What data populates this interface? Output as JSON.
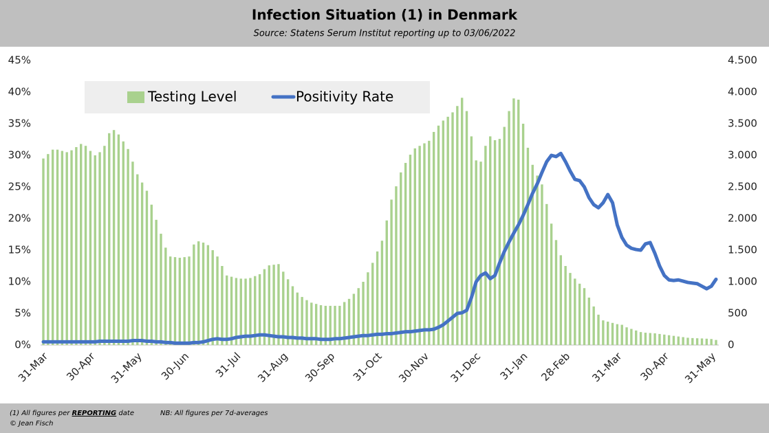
{
  "chart_data": {
    "type": "combo",
    "title": "Infection Situation (1) in Denmark",
    "subtitle": "Source: Statens Serum Institut reporting up to 03/06/2022",
    "categories": [
      "31-Mar",
      null,
      null,
      null,
      null,
      null,
      null,
      null,
      null,
      null,
      "30-Apr",
      null,
      null,
      null,
      null,
      null,
      null,
      null,
      null,
      null,
      "31-May",
      null,
      null,
      null,
      null,
      null,
      null,
      null,
      null,
      null,
      "30-Jun",
      null,
      null,
      null,
      null,
      null,
      null,
      null,
      null,
      null,
      null,
      "31-Jul",
      null,
      null,
      null,
      null,
      null,
      null,
      null,
      null,
      null,
      "31-Aug",
      null,
      null,
      null,
      null,
      null,
      null,
      null,
      null,
      null,
      "30-Sep",
      null,
      null,
      null,
      null,
      null,
      null,
      null,
      null,
      null,
      "31-Oct",
      null,
      null,
      null,
      null,
      null,
      null,
      null,
      null,
      null,
      "30-Nov",
      null,
      null,
      null,
      null,
      null,
      null,
      null,
      null,
      null,
      null,
      "31-Dec",
      null,
      null,
      null,
      null,
      null,
      null,
      null,
      null,
      null,
      "31-Jan",
      null,
      null,
      null,
      null,
      null,
      null,
      null,
      null,
      "28-Feb",
      null,
      null,
      null,
      null,
      null,
      null,
      null,
      null,
      null,
      null,
      "31-Mar",
      null,
      null,
      null,
      null,
      null,
      null,
      null,
      null,
      null,
      "30-Apr",
      null,
      null,
      null,
      null,
      null,
      null,
      null,
      null,
      null,
      "31-May",
      null
    ],
    "series": [
      {
        "name": "Testing Level",
        "type": "bar",
        "axis": "y2",
        "color": "#a9d18e",
        "values": [
          2950,
          3020,
          3090,
          3090,
          3070,
          3050,
          3080,
          3130,
          3180,
          3150,
          3070,
          3000,
          3050,
          3150,
          3350,
          3400,
          3330,
          3220,
          3100,
          2900,
          2700,
          2570,
          2440,
          2220,
          1980,
          1760,
          1540,
          1400,
          1390,
          1380,
          1390,
          1400,
          1590,
          1640,
          1620,
          1580,
          1500,
          1400,
          1250,
          1100,
          1080,
          1060,
          1050,
          1050,
          1060,
          1090,
          1120,
          1200,
          1260,
          1270,
          1280,
          1160,
          1040,
          930,
          830,
          760,
          710,
          670,
          650,
          630,
          620,
          620,
          620,
          620,
          680,
          730,
          810,
          900,
          1000,
          1150,
          1300,
          1480,
          1650,
          1970,
          2300,
          2510,
          2730,
          2880,
          3010,
          3110,
          3150,
          3190,
          3230,
          3370,
          3470,
          3550,
          3610,
          3680,
          3780,
          3910,
          3700,
          3300,
          2920,
          2900,
          3150,
          3300,
          3240,
          3260,
          3450,
          3700,
          3900,
          3880,
          3500,
          3120,
          2850,
          2680,
          2540,
          2230,
          1920,
          1660,
          1420,
          1250,
          1140,
          1050,
          970,
          900,
          750,
          610,
          480,
          390,
          370,
          350,
          330,
          320,
          280,
          255,
          230,
          205,
          195,
          190,
          185,
          175,
          165,
          155,
          145,
          135,
          125,
          115,
          110,
          107,
          104,
          100,
          95,
          80
        ]
      },
      {
        "name": "Positivity Rate",
        "type": "line",
        "color": "#4472c4",
        "values": [
          0.5,
          0.5,
          0.5,
          0.5,
          0.5,
          0.5,
          0.5,
          0.5,
          0.5,
          0.5,
          0.5,
          0.5,
          0.6,
          0.6,
          0.6,
          0.6,
          0.6,
          0.6,
          0.6,
          0.7,
          0.7,
          0.7,
          0.6,
          0.6,
          0.5,
          0.5,
          0.4,
          0.4,
          0.3,
          0.3,
          0.3,
          0.3,
          0.4,
          0.4,
          0.5,
          0.7,
          0.9,
          1.0,
          0.9,
          0.9,
          1.0,
          1.2,
          1.3,
          1.4,
          1.4,
          1.5,
          1.6,
          1.6,
          1.5,
          1.4,
          1.3,
          1.3,
          1.2,
          1.2,
          1.1,
          1.1,
          1.0,
          1.0,
          1.0,
          0.9,
          0.9,
          0.9,
          1.0,
          1.0,
          1.1,
          1.2,
          1.3,
          1.4,
          1.5,
          1.5,
          1.6,
          1.7,
          1.7,
          1.8,
          1.8,
          1.9,
          2.0,
          2.1,
          2.1,
          2.2,
          2.3,
          2.4,
          2.4,
          2.5,
          2.8,
          3.2,
          3.8,
          4.4,
          5.0,
          5.1,
          5.5,
          7.5,
          10.0,
          11.0,
          11.4,
          10.5,
          11.0,
          13.0,
          14.8,
          16.3,
          17.7,
          19.0,
          20.5,
          22.2,
          24.0,
          25.5,
          27.3,
          29.0,
          30.0,
          29.8,
          30.3,
          29.0,
          27.5,
          26.2,
          26.0,
          25.0,
          23.3,
          22.2,
          21.7,
          22.5,
          23.8,
          22.5,
          19.0,
          17.0,
          15.8,
          15.3,
          15.1,
          15.0,
          16.0,
          16.2,
          14.5,
          12.5,
          11.0,
          10.3,
          10.2,
          10.3,
          10.1,
          9.9,
          9.8,
          9.7,
          9.3,
          8.9,
          9.3,
          10.4
        ]
      }
    ],
    "ylim": [
      0,
      45
    ],
    "yticks": [
      {
        "value": 0,
        "label": "0%"
      },
      {
        "value": 5,
        "label": "5%"
      },
      {
        "value": 10,
        "label": "10%"
      },
      {
        "value": 15,
        "label": "15%"
      },
      {
        "value": 20,
        "label": "20%"
      },
      {
        "value": 25,
        "label": "25%"
      },
      {
        "value": 30,
        "label": "30%"
      },
      {
        "value": 35,
        "label": "35%"
      },
      {
        "value": 40,
        "label": "40%"
      },
      {
        "value": 45,
        "label": "45%"
      }
    ],
    "y2lim": [
      0,
      4500
    ],
    "y2ticks": [
      0,
      500,
      {
        "value": 1000,
        "label": "1.000"
      },
      {
        "value": 1500,
        "label": "1.500"
      },
      {
        "value": 2000,
        "label": "2.000"
      },
      {
        "value": 2500,
        "label": "2.500"
      },
      {
        "value": 3000,
        "label": "3.000"
      },
      {
        "value": 3500,
        "label": "3.500"
      },
      {
        "value": 4000,
        "label": "4.000"
      },
      {
        "value": 4500,
        "label": "4.500"
      }
    ],
    "legend": "top-left"
  },
  "footer": {
    "note_start": "(1) All figures per ",
    "note_emphasis": "REPORTING",
    "note_end": " date",
    "nb": "NB: All figures per 7d-averages",
    "credit": "© Jean Fisch"
  }
}
